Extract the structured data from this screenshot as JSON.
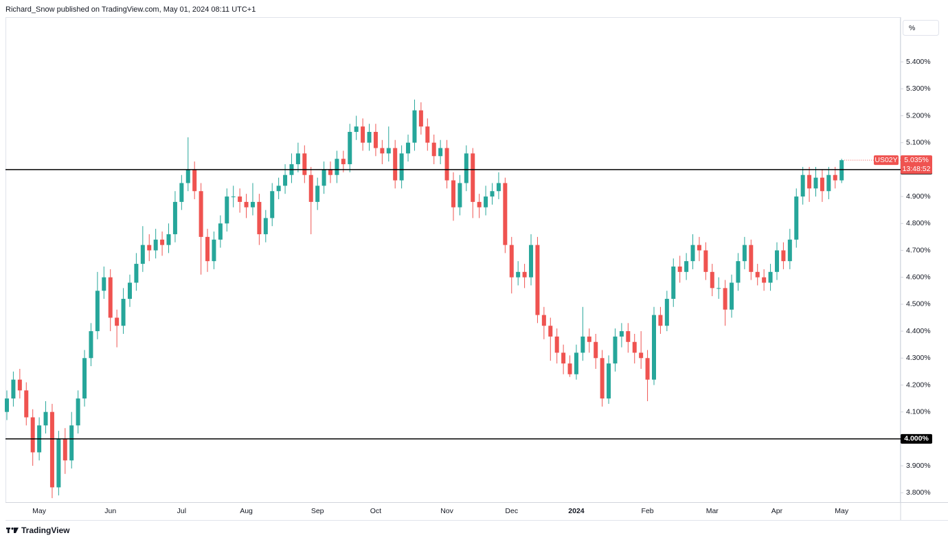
{
  "chart_data": {
    "type": "candlestick",
    "header": "Richard_Snow published on TradingView.com, May 01, 2024 08:11 UTC+1",
    "scale_button": "%",
    "brand": "TradingView",
    "countdown": "13:48:52",
    "last_label": "5.035%",
    "up_color": "#26a69a",
    "down_color": "#ef5350",
    "ylim": [
      3.765,
      5.566
    ],
    "yticks": [
      {
        "value": 3.8,
        "label": "3.800%"
      },
      {
        "value": 3.9,
        "label": "3.900%"
      },
      {
        "value": 4.0,
        "label": "4.000%"
      },
      {
        "value": 4.1,
        "label": "4.100%"
      },
      {
        "value": 4.2,
        "label": "4.200%"
      },
      {
        "value": 4.3,
        "label": "4.300%"
      },
      {
        "value": 4.4,
        "label": "4.400%"
      },
      {
        "value": 4.5,
        "label": "4.500%"
      },
      {
        "value": 4.6,
        "label": "4.600%"
      },
      {
        "value": 4.7,
        "label": "4.700%"
      },
      {
        "value": 4.8,
        "label": "4.800%"
      },
      {
        "value": 4.9,
        "label": "4.900%"
      },
      {
        "value": 5.0,
        "label": "5.000%"
      },
      {
        "value": 5.1,
        "label": "5.100%"
      },
      {
        "value": 5.2,
        "label": "5.200%"
      },
      {
        "value": 5.3,
        "label": "5.300%"
      },
      {
        "value": 5.4,
        "label": "5.400%"
      }
    ],
    "hlines": [
      {
        "value": 5.0,
        "label": "5.000%"
      },
      {
        "value": 4.0,
        "label": "4.000%"
      }
    ],
    "categories": [
      null,
      null,
      null,
      null,
      null,
      "May",
      null,
      null,
      null,
      null,
      null,
      null,
      null,
      null,
      null,
      null,
      "Jun",
      null,
      null,
      null,
      null,
      null,
      null,
      null,
      null,
      null,
      null,
      "Jul",
      null,
      null,
      null,
      null,
      null,
      null,
      null,
      null,
      null,
      "Aug",
      null,
      null,
      null,
      null,
      null,
      null,
      null,
      null,
      null,
      null,
      "Sep",
      null,
      null,
      null,
      null,
      null,
      null,
      null,
      null,
      "Oct",
      null,
      null,
      null,
      null,
      null,
      null,
      null,
      null,
      null,
      null,
      "Nov",
      null,
      null,
      null,
      null,
      null,
      null,
      null,
      null,
      null,
      "Dec",
      null,
      null,
      null,
      null,
      null,
      null,
      null,
      null,
      null,
      "2024",
      null,
      null,
      null,
      null,
      null,
      null,
      null,
      null,
      null,
      null,
      "Feb",
      null,
      null,
      null,
      null,
      null,
      null,
      null,
      null,
      null,
      "Mar",
      null,
      null,
      null,
      null,
      null,
      null,
      null,
      null,
      null,
      "Apr",
      null,
      null,
      null,
      null,
      null,
      null,
      null,
      null,
      null,
      "May"
    ],
    "series": [
      {
        "name": "US02Y",
        "open": [
          4.1,
          4.15,
          4.22,
          4.18,
          4.08,
          3.95,
          4.05,
          4.1,
          3.82,
          4.0,
          3.92,
          4.05,
          4.15,
          4.3,
          4.4,
          4.55,
          4.6,
          4.45,
          4.42,
          4.52,
          4.58,
          4.65,
          4.72,
          4.7,
          4.74,
          4.72,
          4.76,
          4.88,
          4.95,
          5.0,
          4.92,
          4.75,
          4.66,
          4.74,
          4.8,
          4.9,
          4.9,
          4.88,
          4.86,
          4.88,
          4.76,
          4.82,
          4.92,
          4.94,
          4.98,
          5.02,
          5.06,
          4.98,
          4.88,
          4.94,
          5.0,
          4.98,
          5.04,
          5.02,
          5.14,
          5.16,
          5.1,
          5.14,
          5.08,
          5.06,
          5.08,
          4.96,
          5.06,
          5.1,
          5.22,
          5.16,
          5.1,
          5.05,
          5.08,
          4.96,
          4.86,
          4.95,
          5.06,
          4.88,
          4.86,
          4.9,
          4.92,
          4.95,
          4.72,
          4.6,
          4.62,
          4.6,
          4.72,
          4.46,
          4.42,
          4.38,
          4.32,
          4.28,
          4.24,
          4.32,
          4.38,
          4.36,
          4.3,
          4.15,
          4.28,
          4.38,
          4.4,
          4.36,
          4.32,
          4.3,
          4.22,
          4.46,
          4.42,
          4.52,
          4.64,
          4.62,
          4.66,
          4.72,
          4.7,
          4.62,
          4.56,
          4.56,
          4.48,
          4.58,
          4.66,
          4.72,
          4.62,
          4.6,
          4.58,
          4.62,
          4.7,
          4.66,
          4.74,
          4.9,
          4.98,
          4.93,
          4.97,
          4.92,
          4.98,
          4.96
        ],
        "high": [
          4.18,
          4.25,
          4.26,
          4.21,
          4.11,
          4.08,
          4.14,
          4.13,
          4.03,
          4.04,
          4.1,
          4.18,
          4.33,
          4.43,
          4.62,
          4.64,
          4.63,
          4.48,
          4.56,
          4.61,
          4.69,
          4.79,
          4.76,
          4.78,
          4.77,
          4.8,
          4.92,
          4.98,
          5.12,
          5.03,
          4.95,
          4.78,
          4.77,
          4.83,
          4.93,
          4.94,
          4.93,
          4.91,
          4.95,
          4.91,
          4.85,
          4.95,
          4.97,
          5.02,
          5.06,
          5.1,
          5.09,
          5.01,
          4.97,
          5.03,
          5.03,
          5.07,
          5.07,
          5.17,
          5.2,
          5.19,
          5.17,
          5.17,
          5.11,
          5.16,
          5.11,
          5.09,
          5.13,
          5.26,
          5.25,
          5.19,
          5.13,
          5.11,
          5.11,
          4.99,
          4.98,
          5.09,
          5.08,
          4.91,
          4.94,
          4.95,
          4.99,
          4.97,
          4.75,
          4.66,
          4.65,
          4.76,
          4.75,
          4.49,
          4.45,
          4.41,
          4.35,
          4.31,
          4.35,
          4.49,
          4.41,
          4.39,
          4.33,
          4.31,
          4.41,
          4.43,
          4.43,
          4.39,
          4.4,
          4.33,
          4.49,
          4.49,
          4.55,
          4.67,
          4.68,
          4.69,
          4.76,
          4.75,
          4.73,
          4.65,
          4.6,
          4.59,
          4.61,
          4.69,
          4.75,
          4.74,
          4.65,
          4.63,
          4.65,
          4.73,
          4.73,
          4.78,
          4.93,
          5.01,
          5.01,
          5.01,
          5.0,
          5.01,
          5.01,
          5.04
        ],
        "low": [
          4.07,
          4.12,
          4.15,
          4.05,
          3.9,
          3.92,
          4.02,
          3.78,
          3.79,
          3.87,
          3.89,
          4.02,
          4.12,
          4.27,
          4.37,
          4.52,
          4.4,
          4.34,
          4.39,
          4.49,
          4.55,
          4.62,
          4.66,
          4.67,
          4.68,
          4.69,
          4.73,
          4.85,
          4.92,
          4.89,
          4.61,
          4.62,
          4.63,
          4.71,
          4.77,
          4.86,
          4.84,
          4.82,
          4.83,
          4.72,
          4.73,
          4.79,
          4.89,
          4.91,
          4.95,
          4.99,
          4.95,
          4.76,
          4.85,
          4.91,
          4.95,
          4.95,
          4.99,
          4.99,
          5.11,
          5.07,
          5.07,
          5.05,
          5.02,
          5.03,
          4.93,
          4.93,
          5.03,
          5.07,
          5.13,
          5.07,
          5.02,
          5.02,
          4.93,
          4.81,
          4.83,
          4.92,
          4.82,
          4.82,
          4.83,
          4.87,
          4.89,
          4.69,
          4.54,
          4.57,
          4.56,
          4.57,
          4.43,
          4.37,
          4.29,
          4.28,
          4.24,
          4.23,
          4.22,
          4.29,
          4.32,
          4.26,
          4.12,
          4.13,
          4.25,
          4.34,
          4.32,
          4.28,
          4.26,
          4.14,
          4.2,
          4.39,
          4.4,
          4.49,
          4.58,
          4.59,
          4.63,
          4.66,
          4.59,
          4.53,
          4.52,
          4.42,
          4.45,
          4.55,
          4.63,
          4.59,
          4.57,
          4.55,
          4.55,
          4.59,
          4.63,
          4.63,
          4.71,
          4.87,
          4.88,
          4.9,
          4.88,
          4.89,
          4.93,
          4.95
        ],
        "close": [
          4.15,
          4.22,
          4.18,
          4.08,
          3.95,
          4.05,
          4.1,
          3.82,
          4.0,
          3.92,
          4.05,
          4.15,
          4.3,
          4.4,
          4.55,
          4.6,
          4.45,
          4.42,
          4.52,
          4.58,
          4.65,
          4.72,
          4.7,
          4.74,
          4.72,
          4.76,
          4.88,
          4.95,
          5.0,
          4.92,
          4.75,
          4.66,
          4.74,
          4.8,
          4.9,
          4.9,
          4.88,
          4.86,
          4.88,
          4.76,
          4.82,
          4.92,
          4.94,
          4.98,
          5.02,
          5.06,
          4.98,
          4.88,
          4.94,
          5.0,
          4.98,
          5.04,
          5.02,
          5.14,
          5.16,
          5.1,
          5.14,
          5.08,
          5.06,
          5.08,
          4.96,
          5.06,
          5.1,
          5.22,
          5.16,
          5.1,
          5.05,
          5.08,
          4.96,
          4.86,
          4.95,
          5.06,
          4.88,
          4.86,
          4.9,
          4.92,
          4.95,
          4.72,
          4.6,
          4.62,
          4.6,
          4.72,
          4.46,
          4.42,
          4.38,
          4.32,
          4.28,
          4.24,
          4.32,
          4.38,
          4.36,
          4.3,
          4.15,
          4.28,
          4.38,
          4.4,
          4.36,
          4.32,
          4.3,
          4.22,
          4.46,
          4.42,
          4.52,
          4.64,
          4.62,
          4.66,
          4.72,
          4.7,
          4.62,
          4.56,
          4.56,
          4.48,
          4.58,
          4.66,
          4.72,
          4.62,
          4.6,
          4.58,
          4.62,
          4.7,
          4.66,
          4.74,
          4.9,
          4.98,
          4.93,
          4.97,
          4.92,
          4.98,
          4.96,
          5.035
        ]
      }
    ]
  }
}
